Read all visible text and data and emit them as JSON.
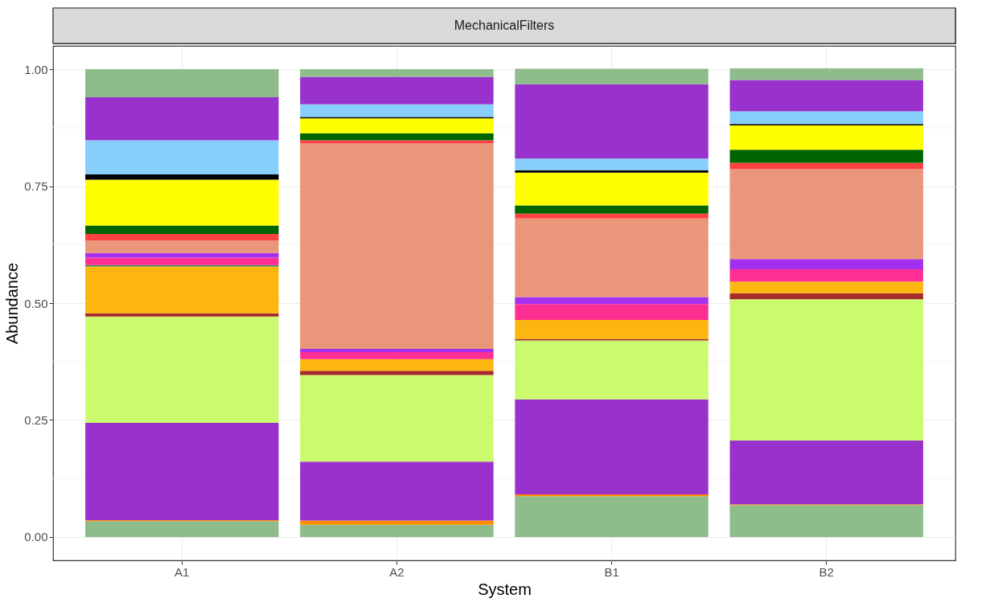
{
  "chart_data": {
    "type": "bar",
    "title": "MechanicalFilters",
    "xlabel": "System",
    "ylabel": "Abundance",
    "categories": [
      "A1",
      "A2",
      "B1",
      "B2"
    ],
    "stacked": true,
    "series": [
      {
        "color": "#8fbc8b",
        "values": [
          0.034,
          0.026,
          0.087,
          0.068
        ]
      },
      {
        "color": "#ff8c00",
        "values": [
          0.002,
          0.009,
          0.004,
          0.002
        ]
      },
      {
        "color": "#9932cc",
        "values": [
          0.208,
          0.126,
          0.203,
          0.136
        ]
      },
      {
        "color": "#ccfa6e",
        "values": [
          0.227,
          0.185,
          0.126,
          0.302
        ]
      },
      {
        "color": "#a52a2a",
        "values": [
          0.007,
          0.009,
          0.003,
          0.013
        ]
      },
      {
        "color": "#fdb510",
        "values": [
          0.1,
          0.025,
          0.041,
          0.025
        ]
      },
      {
        "color": "#2e8b57",
        "values": [
          0.003,
          0,
          0,
          0
        ]
      },
      {
        "color": "#ff2e93",
        "values": [
          0.016,
          0.015,
          0.034,
          0.026
        ]
      },
      {
        "color": "#a330ee",
        "values": [
          0.01,
          0.007,
          0.015,
          0.022
        ]
      },
      {
        "color": "#e9967a",
        "values": [
          0.027,
          0.439,
          0.168,
          0.193
        ]
      },
      {
        "color": "#ff4040",
        "values": [
          0.014,
          0.007,
          0.01,
          0.013
        ]
      },
      {
        "color": "#006400",
        "values": [
          0.018,
          0.015,
          0.018,
          0.028
        ]
      },
      {
        "color": "#ffff00",
        "values": [
          0.098,
          0.032,
          0.07,
          0.052
        ]
      },
      {
        "color": "#000000",
        "values": [
          0.011,
          0.003,
          0.005,
          0.003
        ]
      },
      {
        "color": "#87cefa",
        "values": [
          0.073,
          0.027,
          0.025,
          0.027
        ]
      },
      {
        "color": "#9932cc",
        "values": [
          0.092,
          0.059,
          0.159,
          0.067
        ]
      },
      {
        "color": "#8fbc8b",
        "values": [
          0.06,
          0.016,
          0.033,
          0.025
        ]
      }
    ],
    "ylim": [
      -0.05,
      1.05
    ],
    "yticks": [
      {
        "value": 0,
        "label": "0.00"
      },
      {
        "value": 0.125,
        "label": null
      },
      0.25,
      {
        "value": 0.375,
        "label": null
      },
      {
        "value": 0.5,
        "label": "0.50"
      },
      {
        "value": 0.625,
        "label": null
      },
      0.75,
      {
        "value": 0.875,
        "label": null
      },
      {
        "value": 1,
        "label": "1.00"
      }
    ],
    "grid": true,
    "legend": false
  }
}
